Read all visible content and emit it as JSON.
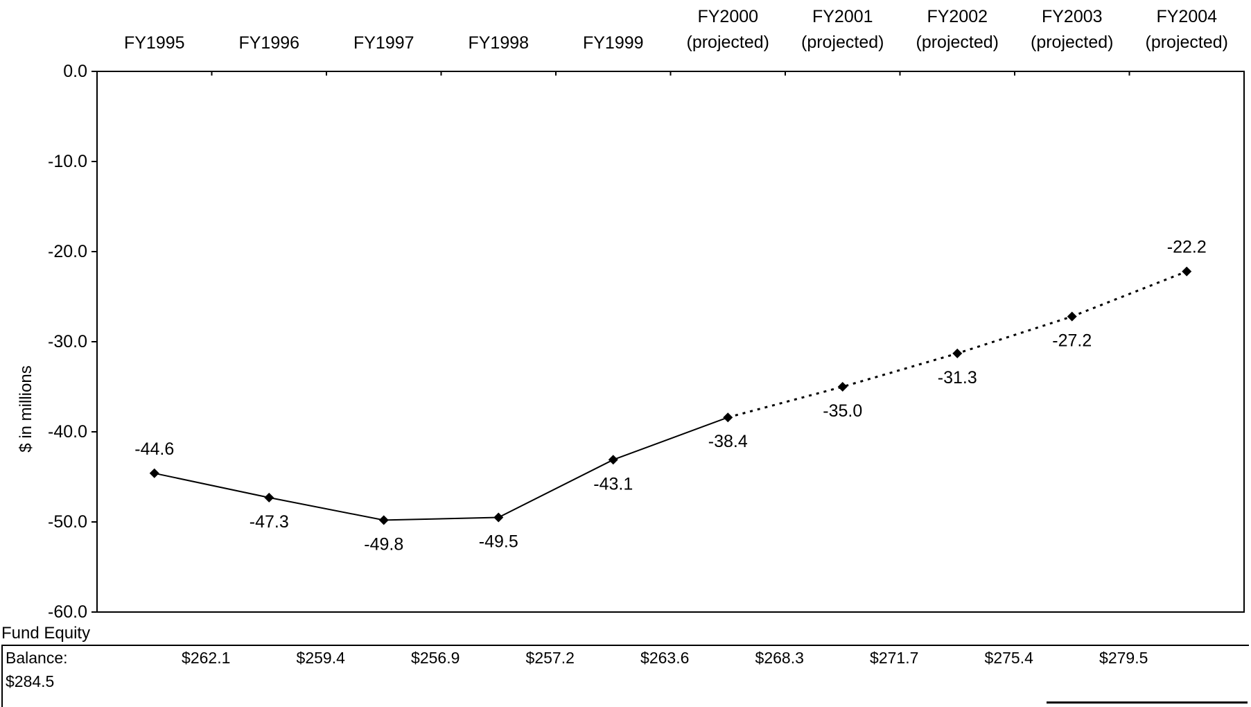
{
  "chart_data": {
    "type": "line",
    "categories": [
      [
        "FY1995"
      ],
      [
        "FY1996"
      ],
      [
        "FY1997"
      ],
      [
        "FY1998"
      ],
      [
        "FY1999"
      ],
      [
        "FY2000",
        "(projected)"
      ],
      [
        "FY2001",
        "(projected)"
      ],
      [
        "FY2002",
        "(projected)"
      ],
      [
        "FY2003",
        "(projected)"
      ],
      [
        "FY2004",
        "(projected)"
      ]
    ],
    "values": [
      -44.6,
      -47.3,
      -49.8,
      -49.5,
      -43.1,
      -38.4,
      -35.0,
      -31.3,
      -27.2,
      -22.2
    ],
    "value_labels": [
      "-44.6",
      "-47.3",
      "-49.8",
      "-49.5",
      "-43.1",
      "-38.4",
      "-35.0",
      "-31.3",
      "-27.2",
      "-22.2"
    ],
    "label_placement": [
      "above",
      "below",
      "below",
      "below",
      "below",
      "below",
      "below",
      "below",
      "below",
      "above"
    ],
    "actual_count": 6,
    "projected_line_style": "dotted",
    "ylabel": "$ in millions",
    "ylim": [
      -60,
      0
    ],
    "yticks": [
      "0.0",
      "-10.0",
      "-20.0",
      "-30.0",
      "-40.0",
      "-50.0",
      "-60.0"
    ],
    "ytick_values": [
      0,
      -10,
      -20,
      -30,
      -40,
      -50,
      -60
    ],
    "category_axis_position": "top",
    "grid": false,
    "line_color": "#000000",
    "marker": "diamond"
  },
  "fund_equity": {
    "title": "Fund Equity",
    "balance_label": "Balance:",
    "values": [
      "$262.1",
      "$259.4",
      "$256.9",
      "$257.2",
      "$263.6",
      "$268.3",
      "$271.7",
      "$275.4",
      "$279.5"
    ],
    "last_value": "$284.5"
  }
}
